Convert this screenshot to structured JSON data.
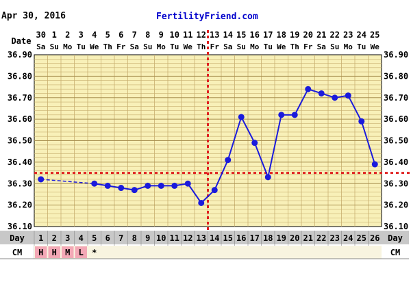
{
  "header": {
    "date": "Apr 30, 2016",
    "site": "FertilityFriend.com"
  },
  "labels": {
    "date_row": "Date",
    "day_row": "Day",
    "cm_row": "CM"
  },
  "colors": {
    "line": "#1a1adc",
    "coverline": "#e02020",
    "grid_bg": "#f8f0b8",
    "grid": "#c8b070",
    "cm_bg": "#f3a8b6",
    "label_bg": "#c8c8c8",
    "site": "#0000cc"
  },
  "chart_data": {
    "type": "line",
    "title": "",
    "xlabel": "Day",
    "ylabel": "",
    "x": [
      1,
      2,
      3,
      4,
      5,
      6,
      7,
      8,
      9,
      10,
      11,
      12,
      13,
      14,
      15,
      16,
      17,
      18,
      19,
      20,
      21,
      22,
      23,
      24,
      25,
      26
    ],
    "dates": [
      "30",
      "1",
      "2",
      "3",
      "4",
      "5",
      "6",
      "7",
      "8",
      "9",
      "10",
      "11",
      "12",
      "13",
      "14",
      "15",
      "16",
      "17",
      "18",
      "19",
      "20",
      "21",
      "22",
      "23",
      "24",
      "25"
    ],
    "weekdays": [
      "Sa",
      "Su",
      "Mo",
      "Tu",
      "We",
      "Th",
      "Fr",
      "Sa",
      "Su",
      "Mo",
      "Tu",
      "We",
      "Th",
      "Fr",
      "Sa",
      "Su",
      "Mo",
      "Tu",
      "We",
      "Th",
      "Fr",
      "Sa",
      "Su",
      "Mo",
      "Tu",
      "We"
    ],
    "yticks": [
      "36.90",
      "36.80",
      "36.70",
      "36.60",
      "36.50",
      "36.40",
      "36.30",
      "36.20",
      "36.10"
    ],
    "ylim": [
      36.1,
      36.9
    ],
    "series": [
      {
        "values": [
          36.32,
          null,
          null,
          null,
          36.3,
          36.29,
          36.28,
          36.27,
          36.29,
          36.29,
          36.29,
          36.3,
          36.21,
          36.27,
          36.41,
          36.61,
          36.49,
          36.33,
          36.62,
          36.62,
          36.74,
          36.72,
          36.7,
          36.71,
          36.59,
          36.39
        ],
        "dashed_gap": [
          1,
          5
        ]
      }
    ],
    "coverline": 36.35,
    "ovulation_day": 14,
    "cervical_mucus": [
      "H",
      "H",
      "M",
      "L",
      "*",
      "",
      "",
      "",
      "",
      "",
      "",
      "",
      "",
      "",
      "",
      "",
      "",
      "",
      "",
      "",
      "",
      "",
      "",
      "",
      "",
      ""
    ],
    "grid": true
  }
}
